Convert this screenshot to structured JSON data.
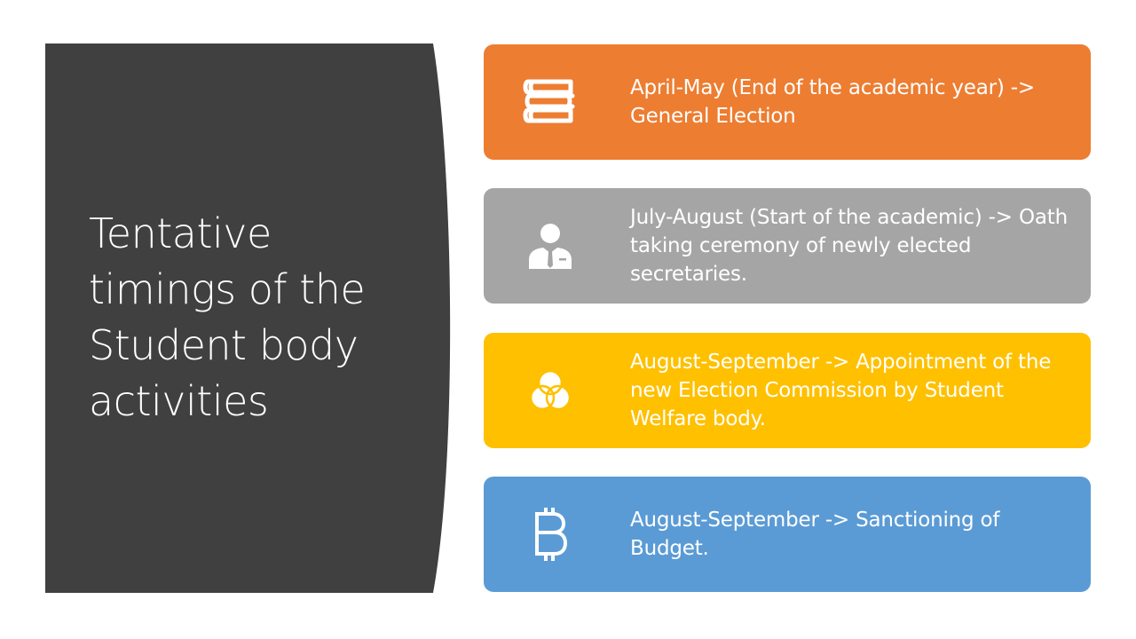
{
  "slide": {
    "title": "Tentative timings of the Student body activities",
    "colors": {
      "left_panel": "#404040",
      "background": "#ffffff"
    },
    "items": [
      {
        "text": "April-May (End of the academic year) -> General Election",
        "icon": "books-icon",
        "color": "#ED7D31"
      },
      {
        "text": "July-August (Start of the academic) -> Oath taking ceremony of newly elected secretaries.",
        "icon": "person-with-tie-icon",
        "color": "#A5A5A5"
      },
      {
        "text": "August-September -> Appointment of the new Election Commission by Student Welfare body.",
        "icon": "venn-diagram-icon",
        "color": "#FFC000"
      },
      {
        "text": "August-September -> Sanctioning of Budget.",
        "icon": "bitcoin-icon",
        "color": "#5B9BD5"
      }
    ]
  }
}
